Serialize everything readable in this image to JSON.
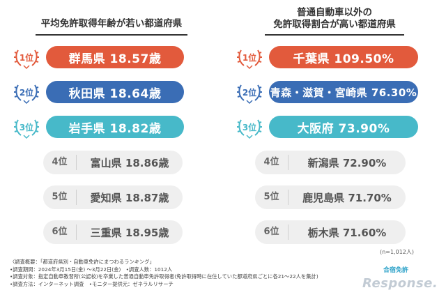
{
  "colors": {
    "gold": "#e25a3c",
    "silver": "#3a6db5",
    "bronze": "#47b9c9",
    "gray_bg": "#efefef"
  },
  "left": {
    "heading": [
      "平均免許取得年齢が若い都道府県"
    ],
    "top3": [
      {
        "rank": "1位",
        "value": "群馬県 18.57歳",
        "color": "#e25a3c"
      },
      {
        "rank": "2位",
        "value": "秋田県 18.64歳",
        "color": "#3a6db5"
      },
      {
        "rank": "3位",
        "value": "岩手県 18.82歳",
        "color": "#47b9c9"
      }
    ],
    "rest": [
      {
        "rank": "4位",
        "value": "富山県 18.86歳"
      },
      {
        "rank": "5位",
        "value": "愛知県 18.87歳"
      },
      {
        "rank": "6位",
        "value": "三重県 18.95歳"
      }
    ]
  },
  "right": {
    "heading": [
      "普通自動車以外の",
      "免許取得割合が高い都道府県"
    ],
    "top3": [
      {
        "rank": "1位",
        "value": "千葉県 109.50%",
        "color": "#e25a3c"
      },
      {
        "rank": "2位",
        "value": "青森・滋賀・宮崎県 76.30%",
        "color": "#3a6db5"
      },
      {
        "rank": "3位",
        "value": "大阪府 73.90%",
        "color": "#47b9c9"
      }
    ],
    "rest": [
      {
        "rank": "4位",
        "value": "新潟県 72.90%"
      },
      {
        "rank": "5位",
        "value": "鹿児島県 71.70%"
      },
      {
        "rank": "6位",
        "value": "栃木県 71.60%"
      }
    ]
  },
  "sample_size": "(n=1,012人)",
  "notes": [
    "〈調査概要：「都道府県別・自動車免許にまつわるランキング」",
    "•調査期間：2024年3月15日(金) ～3月22日(金)　•調査人数：1012人",
    "•調査対象：指定自動車教習所(公認校)を卒業した普通自動車免許取得者(免許取得時に在住していた都道府県ごとに各21～22人を集計)",
    "•調査方法：インターネット調査　•モニター提供元：ゼネラルリサーチ"
  ],
  "brand": "合宿免許",
  "watermark": "Response."
}
